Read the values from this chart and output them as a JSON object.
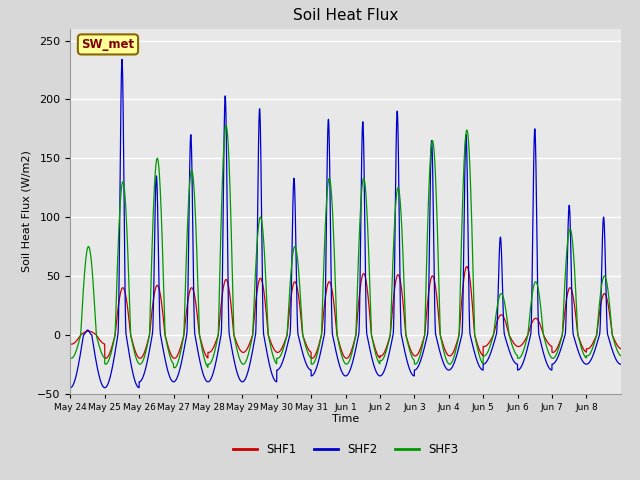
{
  "title": "Soil Heat Flux",
  "ylabel": "Soil Heat Flux (W/m2)",
  "xlabel": "Time",
  "ylim": [
    -50,
    260
  ],
  "yticks": [
    -50,
    0,
    50,
    100,
    150,
    200,
    250
  ],
  "colors": {
    "SHF1": "#cc0000",
    "SHF2": "#0000cc",
    "SHF3": "#009900"
  },
  "fig_bg_color": "#d8d8d8",
  "plot_bg_color": "#e8e8e8",
  "grid_color": "#ffffff",
  "annotation_text": "SW_met",
  "annotation_bg": "#ffff99",
  "annotation_border": "#886600",
  "x_tick_labels": [
    "May 24",
    "May 25",
    "May 26",
    "May 27",
    "May 28",
    "May 29",
    "May 30",
    "May 31",
    "Jun 1",
    "Jun 2",
    "Jun 3",
    "Jun 4",
    "Jun 5",
    "Jun 6",
    "Jun 7",
    "Jun 8"
  ],
  "num_days": 16,
  "points_per_day": 288,
  "line_width": 0.9,
  "shf1_peaks": [
    3,
    40,
    42,
    40,
    47,
    48,
    45,
    45,
    52,
    51,
    50,
    58,
    17,
    14,
    40,
    35
  ],
  "shf2_peaks": [
    4,
    234,
    135,
    170,
    203,
    192,
    133,
    183,
    181,
    190,
    165,
    170,
    83,
    175,
    110,
    100
  ],
  "shf3_peaks": [
    75,
    130,
    150,
    140,
    178,
    100,
    75,
    133,
    133,
    125,
    165,
    174,
    35,
    45,
    90,
    50
  ],
  "shf1_neg": [
    8,
    20,
    20,
    20,
    15,
    15,
    15,
    20,
    20,
    18,
    18,
    18,
    10,
    10,
    15,
    12
  ],
  "shf2_neg": [
    45,
    45,
    40,
    40,
    40,
    40,
    30,
    35,
    35,
    35,
    30,
    30,
    25,
    30,
    25,
    25
  ],
  "shf3_neg": [
    20,
    25,
    25,
    28,
    25,
    25,
    20,
    25,
    25,
    22,
    25,
    25,
    18,
    20,
    20,
    18
  ]
}
